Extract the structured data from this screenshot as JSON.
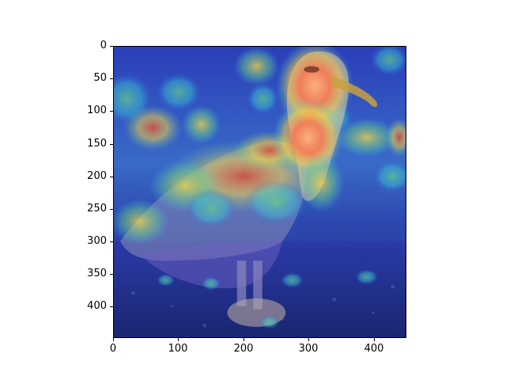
{
  "image": {
    "x_axis": {
      "ticks": [
        "0",
        "100",
        "200",
        "300",
        "400"
      ],
      "tick_values": [
        0,
        100,
        200,
        300,
        400
      ],
      "range": [
        0,
        450
      ]
    },
    "y_axis": {
      "ticks": [
        "0",
        "50",
        "100",
        "150",
        "200",
        "250",
        "300",
        "350",
        "400"
      ],
      "tick_values": [
        0,
        50,
        100,
        150,
        200,
        250,
        300,
        350,
        400
      ],
      "range": [
        0,
        448
      ],
      "inverted": true
    },
    "colormap": "jet",
    "palette": {
      "deep_blue": "#1a2a9a",
      "blue": "#2f5fd0",
      "cyan": "#37c6d8",
      "green": "#6bd28a",
      "yellow": "#f2d24a",
      "orange": "#f08a3a",
      "red": "#d93b2f",
      "peach": "#f7b07a"
    }
  }
}
